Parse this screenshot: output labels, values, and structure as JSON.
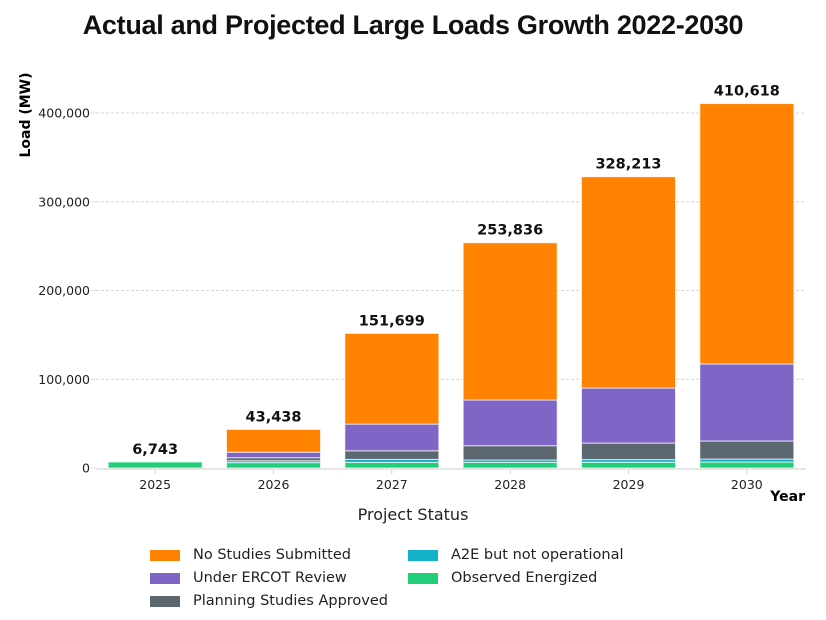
{
  "chart_data": {
    "type": "bar",
    "stacked": true,
    "title": "Actual and Projected Large Loads Growth 2022-2030",
    "xlabel": "Year",
    "ylabel": "Load (MW)",
    "ylim": [
      0,
      440000
    ],
    "yticks": [
      0,
      100000,
      200000,
      300000,
      400000
    ],
    "ytick_labels": [
      "0",
      "100,000",
      "200,000",
      "300,000",
      "400,000"
    ],
    "grid": "horizontal-dashed",
    "categories": [
      "2025",
      "2026",
      "2027",
      "2028",
      "2029",
      "2030"
    ],
    "totals": [
      6743,
      43438,
      151699,
      253836,
      328213,
      410618
    ],
    "total_labels": [
      "6,743",
      "43,438",
      "151,699",
      "253,836",
      "328,213",
      "410,618"
    ],
    "legend_title": "Project Status",
    "legend_position": "bottom-center",
    "series": [
      {
        "name": "Observed Energized",
        "color": "#22CE7A",
        "values": [
          6743,
          6000,
          6300,
          6200,
          6500,
          6700
        ]
      },
      {
        "name": "A2E but not operational",
        "color": "#13B2C9",
        "values": [
          0,
          2200,
          3400,
          2800,
          3000,
          3400
        ]
      },
      {
        "name": "Planning Studies Approved",
        "color": "#5C6770",
        "values": [
          0,
          3400,
          9700,
          16100,
          18600,
          20300
        ]
      },
      {
        "name": "Under ERCOT Review",
        "color": "#7F66C6",
        "values": [
          0,
          6200,
          30100,
          51500,
          62000,
          86800
        ]
      },
      {
        "name": "No Studies Submitted",
        "color": "#FF8300",
        "values": [
          0,
          25638,
          102199,
          177236,
          238113,
          293418
        ]
      }
    ],
    "legend_order": [
      "No Studies Submitted",
      "Under ERCOT Review",
      "Planning Studies Approved",
      "A2E but not operational",
      "Observed Energized"
    ]
  }
}
